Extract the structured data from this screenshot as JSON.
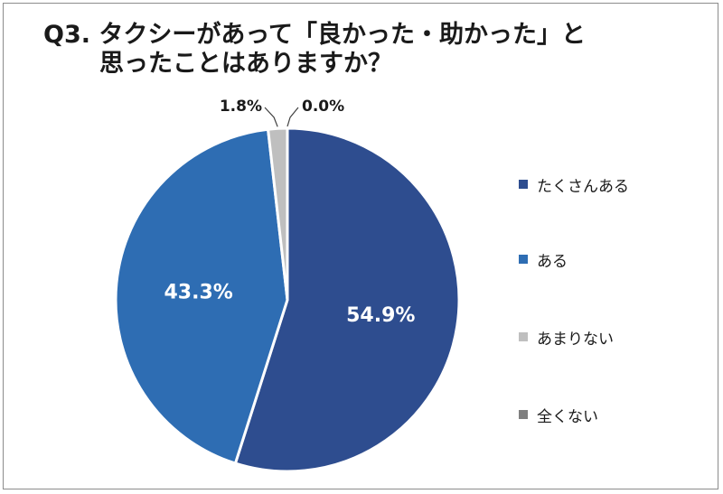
{
  "chart_data": {
    "type": "pie",
    "title_line1": "Q3. タクシーがあって「良かった・助かった」と",
    "title_line2": "思ったことはありますか？",
    "categories": [
      "たくさんある",
      "ある",
      "あまりない",
      "全くない"
    ],
    "values": [
      54.9,
      43.3,
      1.8,
      0.0
    ],
    "value_labels": [
      "54.9%",
      "43.3%",
      "1.8%",
      "0.0%"
    ],
    "colors": [
      "#2e4d8f",
      "#2e6db3",
      "#bfbfbf",
      "#7f7f7f"
    ],
    "legend_position": "right",
    "start_angle_deg": 0,
    "direction": "clockwise"
  }
}
